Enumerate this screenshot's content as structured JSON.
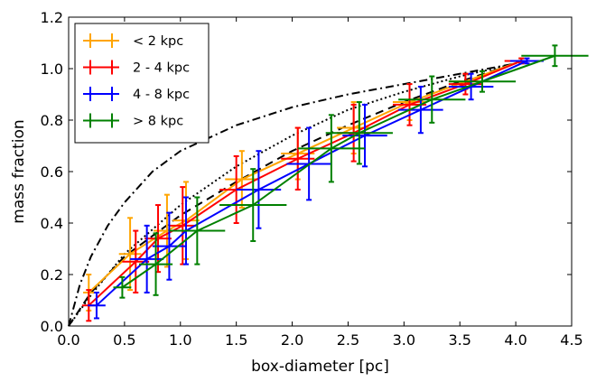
{
  "chart_data": {
    "type": "line",
    "title": "",
    "xlabel": "box-diameter [pc]",
    "ylabel": "mass fraction",
    "xlim": [
      0.0,
      4.5
    ],
    "ylim": [
      0.0,
      1.2
    ],
    "xticks": [
      "0.0",
      "0.5",
      "1.0",
      "1.5",
      "2.0",
      "2.5",
      "3.0",
      "3.5",
      "4.0",
      "4.5"
    ],
    "yticks": [
      "0.0",
      "0.2",
      "0.4",
      "0.6",
      "0.8",
      "1.0",
      "1.2"
    ],
    "grid": false,
    "legend_position": "top-left",
    "series": [
      {
        "name": "< 2 kpc",
        "color": "#ffa500",
        "x": [
          0.18,
          0.55,
          0.88,
          1.05,
          1.55,
          2.05,
          2.55,
          3.05,
          3.55,
          4.05
        ],
        "y": [
          0.13,
          0.28,
          0.37,
          0.41,
          0.57,
          0.67,
          0.77,
          0.87,
          0.95,
          1.03
        ],
        "xerr": [
          0.05,
          0.1,
          0.12,
          0.12,
          0.15,
          0.15,
          0.15,
          0.15,
          0.15,
          0.15
        ],
        "yerr": [
          0.07,
          0.14,
          0.14,
          0.15,
          0.11,
          0.1,
          0.1,
          0.07,
          0.03,
          0.01
        ]
      },
      {
        "name": "2 - 4 kpc",
        "color": "#ff0000",
        "x": [
          0.18,
          0.6,
          0.8,
          1.02,
          1.5,
          2.05,
          2.55,
          3.05,
          3.55,
          4.05
        ],
        "y": [
          0.08,
          0.25,
          0.34,
          0.39,
          0.53,
          0.65,
          0.75,
          0.86,
          0.94,
          1.03
        ],
        "xerr": [
          0.06,
          0.12,
          0.12,
          0.12,
          0.15,
          0.15,
          0.15,
          0.15,
          0.15,
          0.15
        ],
        "yerr": [
          0.06,
          0.12,
          0.13,
          0.15,
          0.13,
          0.12,
          0.11,
          0.08,
          0.04,
          0.01
        ]
      },
      {
        "name": "4 - 8 kpc",
        "color": "#0000ff",
        "x": [
          0.25,
          0.7,
          0.9,
          1.05,
          1.7,
          2.15,
          2.65,
          3.15,
          3.6,
          4.1
        ],
        "y": [
          0.08,
          0.26,
          0.31,
          0.37,
          0.53,
          0.63,
          0.74,
          0.84,
          0.93,
          1.03
        ],
        "xerr": [
          0.08,
          0.15,
          0.15,
          0.15,
          0.2,
          0.2,
          0.2,
          0.2,
          0.2,
          0.15
        ],
        "yerr": [
          0.05,
          0.13,
          0.13,
          0.13,
          0.15,
          0.14,
          0.12,
          0.09,
          0.05,
          0.01
        ]
      },
      {
        "name": "> 8 kpc",
        "color": "#008000",
        "x": [
          0.48,
          0.78,
          1.15,
          1.65,
          2.35,
          2.6,
          3.25,
          3.7,
          4.35
        ],
        "y": [
          0.15,
          0.24,
          0.37,
          0.47,
          0.69,
          0.75,
          0.88,
          0.95,
          1.05
        ],
        "xerr": [
          0.08,
          0.15,
          0.25,
          0.3,
          0.3,
          0.3,
          0.3,
          0.3,
          0.3
        ],
        "yerr": [
          0.04,
          0.12,
          0.13,
          0.14,
          0.13,
          0.12,
          0.09,
          0.04,
          0.04
        ]
      }
    ],
    "reference_curves": [
      {
        "style": "dashed",
        "color": "#000000",
        "x": [
          0.0,
          0.2,
          0.5,
          1.0,
          1.5,
          2.0,
          2.5,
          3.0,
          3.5,
          4.0
        ],
        "y": [
          0.0,
          0.13,
          0.27,
          0.43,
          0.56,
          0.68,
          0.78,
          0.87,
          0.95,
          1.02
        ]
      },
      {
        "style": "dotted",
        "color": "#000000",
        "x": [
          0.0,
          0.2,
          0.5,
          1.0,
          1.5,
          2.0,
          2.5,
          3.0,
          3.5,
          4.0
        ],
        "y": [
          0.0,
          0.12,
          0.28,
          0.47,
          0.62,
          0.74,
          0.84,
          0.91,
          0.97,
          1.02
        ]
      },
      {
        "style": "dashdot",
        "color": "#000000",
        "x": [
          0.0,
          0.1,
          0.2,
          0.35,
          0.5,
          0.75,
          1.0,
          1.5,
          2.0,
          2.5,
          3.0,
          3.5,
          4.0
        ],
        "y": [
          0.0,
          0.16,
          0.27,
          0.39,
          0.48,
          0.6,
          0.68,
          0.78,
          0.85,
          0.9,
          0.94,
          0.98,
          1.02
        ]
      }
    ]
  }
}
